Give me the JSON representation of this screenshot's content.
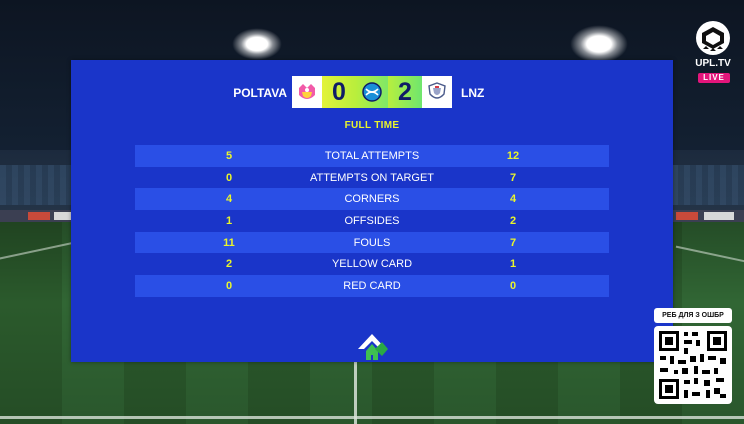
{
  "overlay": {
    "home_team": "POLTAVA",
    "away_team": "LNZ",
    "home_score": "0",
    "away_score": "2",
    "status": "FULL TIME"
  },
  "stats": [
    {
      "label": "TOTAL ATTEMPTS",
      "home": "5",
      "away": "12"
    },
    {
      "label": "ATTEMPTS ON TARGET",
      "home": "0",
      "away": "7"
    },
    {
      "label": "CORNERS",
      "home": "4",
      "away": "4"
    },
    {
      "label": "OFFSIDES",
      "home": "1",
      "away": "2"
    },
    {
      "label": "FOULS",
      "home": "11",
      "away": "7"
    },
    {
      "label": "YELLOW CARD",
      "home": "2",
      "away": "1"
    },
    {
      "label": "RED CARD",
      "home": "0",
      "away": "0"
    }
  ],
  "broadcaster": {
    "name": "UPL.TV",
    "live_label": "LIVE"
  },
  "qr": {
    "label": "РЕБ ДЛЯ З ОШБР"
  },
  "colors": {
    "panel": "#1a35c9",
    "row_alt": "#2a4fe6",
    "accent": "#e9f52c",
    "live": "#e3157b"
  },
  "icons": {
    "home_crest": "poltava-crest-icon",
    "away_crest": "lnz-crest-icon",
    "league": "upl-ball-icon",
    "sponsor": "sponsor-arrow-logo"
  }
}
